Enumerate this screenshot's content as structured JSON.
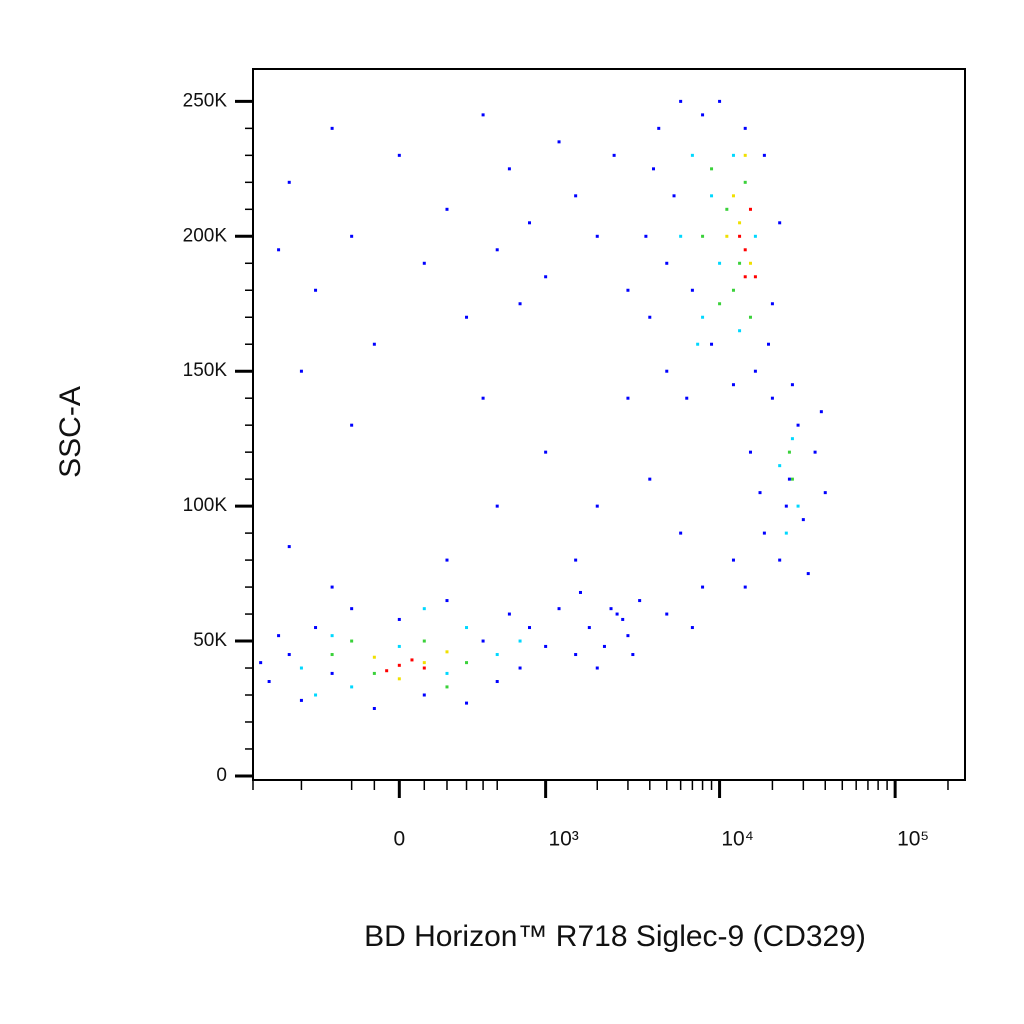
{
  "chart_data": {
    "type": "scatter",
    "x_label": "BD Horizon™ R718 Siglec-9 (CD329)",
    "y_label": "SSC-A",
    "xscale": "biexponential",
    "xlim": [
      -1000,
      250000
    ],
    "ylim": [
      -1500,
      262000
    ],
    "xticks": [
      0,
      {
        "value": 1000,
        "label": "10³"
      },
      {
        "value": 10000,
        "label": "10⁴"
      },
      {
        "value": 100000,
        "label": "10⁵"
      }
    ],
    "xminorticks": [
      -1000,
      -500,
      -200,
      -100,
      100,
      200,
      300,
      400,
      500,
      2000,
      3000,
      4000,
      5000,
      6000,
      7000,
      8000,
      9000,
      20000,
      30000,
      40000,
      50000,
      60000,
      70000,
      80000,
      90000,
      200000
    ],
    "yticks": [
      0,
      {
        "value": 50000,
        "label": "50K"
      },
      {
        "value": 100000,
        "label": "100K"
      },
      {
        "value": 150000,
        "label": "150K"
      },
      {
        "value": 200000,
        "label": "200K"
      },
      {
        "value": 250000,
        "label": "250K"
      }
    ],
    "yminorticks": [
      10000,
      20000,
      30000,
      40000,
      60000,
      70000,
      80000,
      90000,
      110000,
      120000,
      130000,
      140000,
      160000,
      170000,
      180000,
      190000,
      210000,
      220000,
      230000,
      240000
    ],
    "series": [
      {
        "color": "#0000ff",
        "x": [
          -800,
          -600,
          -500,
          -400,
          -300,
          -200,
          -100,
          0,
          100,
          200,
          300,
          400,
          500,
          600,
          700,
          800,
          -700,
          -900,
          1000,
          1200,
          1500,
          -300,
          200,
          -600,
          1800,
          2200,
          2600,
          3000,
          3500,
          2000,
          2800,
          1600,
          3200,
          2400,
          -600,
          -400,
          -300,
          -200,
          -100,
          0,
          100,
          200,
          300,
          400,
          500,
          600,
          700,
          -500,
          800,
          1000,
          1200,
          -200,
          400,
          1500,
          2000,
          2500,
          3000,
          -700,
          1000,
          2000,
          3000,
          1500,
          4000,
          500,
          6000,
          8000,
          5000,
          7000,
          3800,
          4000,
          4500,
          5000,
          5500,
          6000,
          6500,
          7000,
          8000,
          9000,
          10000,
          12000,
          14000,
          16000,
          18000,
          20000,
          22000,
          19000,
          5000,
          4200,
          15000,
          18000,
          20000,
          22000,
          25000,
          28000,
          30000,
          35000,
          40000,
          32000,
          26000,
          24000,
          38000,
          17000,
          12000,
          14000
        ],
        "y": [
          35000,
          45000,
          28000,
          55000,
          38000,
          62000,
          25000,
          58000,
          30000,
          65000,
          27000,
          50000,
          35000,
          60000,
          40000,
          55000,
          52000,
          42000,
          48000,
          62000,
          45000,
          70000,
          80000,
          85000,
          55000,
          48000,
          60000,
          52000,
          65000,
          40000,
          58000,
          68000,
          45000,
          62000,
          220000,
          180000,
          240000,
          200000,
          160000,
          230000,
          190000,
          210000,
          170000,
          245000,
          195000,
          225000,
          175000,
          150000,
          205000,
          185000,
          235000,
          130000,
          140000,
          215000,
          200000,
          230000,
          180000,
          195000,
          120000,
          100000,
          140000,
          80000,
          110000,
          100000,
          90000,
          70000,
          60000,
          55000,
          200000,
          170000,
          240000,
          150000,
          215000,
          250000,
          140000,
          180000,
          245000,
          160000,
          250000,
          145000,
          240000,
          150000,
          230000,
          175000,
          205000,
          160000,
          190000,
          225000,
          120000,
          90000,
          140000,
          80000,
          110000,
          130000,
          95000,
          120000,
          105000,
          75000,
          145000,
          100000,
          135000,
          105000,
          80000,
          70000
        ]
      },
      {
        "color": "#00d8ff",
        "x": [
          -500,
          -300,
          -200,
          0,
          200,
          300,
          500,
          -400,
          700,
          100,
          6000,
          7000,
          8000,
          9000,
          10000,
          12000,
          13000,
          16000,
          7500,
          22000,
          26000,
          28000,
          24000
        ],
        "y": [
          40000,
          52000,
          33000,
          48000,
          38000,
          55000,
          45000,
          30000,
          50000,
          62000,
          200000,
          230000,
          170000,
          215000,
          190000,
          230000,
          165000,
          200000,
          160000,
          115000,
          125000,
          100000,
          90000
        ]
      },
      {
        "color": "#3ad13a",
        "x": [
          -300,
          -100,
          100,
          300,
          -200,
          200,
          8000,
          9000,
          10000,
          11000,
          13000,
          14000,
          12000,
          15000,
          26000,
          25000
        ],
        "y": [
          45000,
          38000,
          50000,
          42000,
          50000,
          33000,
          200000,
          225000,
          175000,
          210000,
          190000,
          220000,
          180000,
          170000,
          110000,
          120000
        ]
      },
      {
        "color": "#f0e000",
        "x": [
          -100,
          100,
          0,
          200,
          11000,
          12000,
          13000,
          15000,
          14000
        ],
        "y": [
          44000,
          42000,
          36000,
          46000,
          200000,
          215000,
          205000,
          190000,
          230000
        ]
      },
      {
        "color": "#ff0000",
        "x": [
          0,
          50,
          -50,
          100,
          13000,
          14000,
          15000,
          16000,
          14000
        ],
        "y": [
          41000,
          43000,
          39000,
          40000,
          200000,
          195000,
          210000,
          185000,
          185000
        ]
      }
    ]
  }
}
